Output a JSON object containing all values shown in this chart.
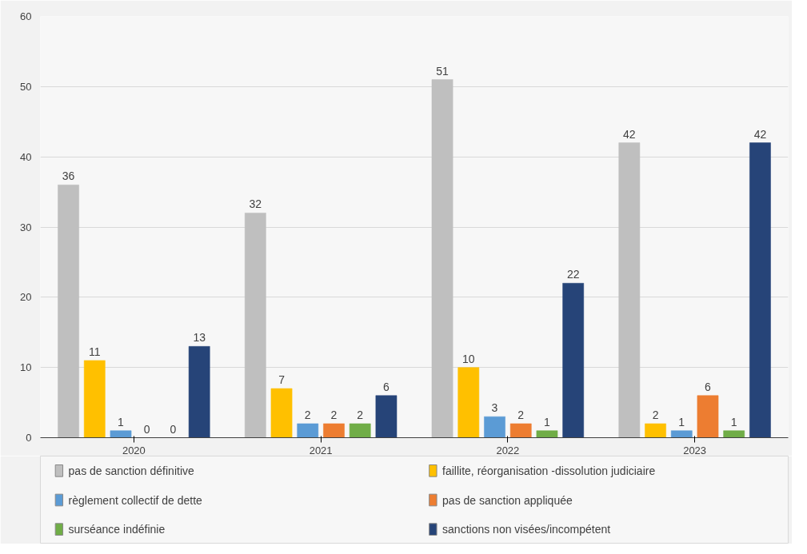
{
  "chart_data": {
    "type": "bar",
    "categories": [
      "2020",
      "2021",
      "2022",
      "2023"
    ],
    "series": [
      {
        "name": "pas de sanction définitive",
        "color": "#bfbfbf",
        "values": [
          36,
          32,
          51,
          42
        ]
      },
      {
        "name": "faillite, réorganisation -dissolution judiciaire",
        "color": "#ffc000",
        "values": [
          11,
          7,
          10,
          2
        ]
      },
      {
        "name": "règlement collectif de dette",
        "color": "#5b9bd5",
        "values": [
          1,
          2,
          3,
          1
        ]
      },
      {
        "name": "pas de sanction appliquée",
        "color": "#ed7d31",
        "values": [
          0,
          2,
          2,
          6
        ]
      },
      {
        "name": "surséance indéfinie",
        "color": "#70ad47",
        "values": [
          0,
          2,
          1,
          1
        ]
      },
      {
        "name": "sanctions non visées/incompétent",
        "color": "#264478",
        "values": [
          13,
          6,
          22,
          42
        ]
      }
    ],
    "ylim": [
      0,
      60
    ],
    "yticks": [
      0,
      10,
      20,
      30,
      40,
      50,
      60
    ],
    "grid": "y",
    "legend": "bottom",
    "data_labels": true
  }
}
